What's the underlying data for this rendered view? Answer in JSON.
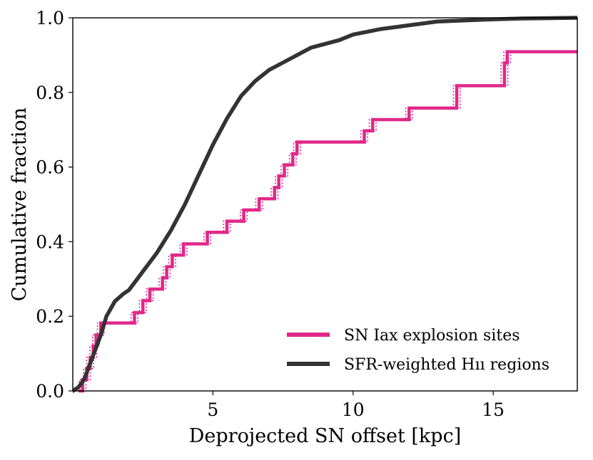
{
  "chart_data": {
    "type": "line",
    "title": "",
    "xlabel": "Deprojected SN offset [kpc]",
    "ylabel": "Cumulative fraction",
    "xlim": [
      0,
      18
    ],
    "ylim": [
      0.0,
      1.0
    ],
    "x_ticks": [
      5,
      10,
      15
    ],
    "x_tick_labels": [
      "5",
      "10",
      "15"
    ],
    "y_ticks": [
      0.0,
      0.2,
      0.4,
      0.6,
      0.8,
      1.0
    ],
    "y_tick_labels": [
      "0.0",
      "0.2",
      "0.4",
      "0.6",
      "0.8",
      "1.0"
    ],
    "grid": false,
    "legend_position": "lower-right",
    "series": [
      {
        "name": "SN Iax explosion sites",
        "style": "step",
        "color": "#e0288a",
        "x": [
          0.2,
          0.35,
          0.5,
          0.62,
          0.73,
          0.83,
          1.0,
          2.2,
          2.5,
          2.75,
          3.2,
          3.35,
          3.55,
          3.95,
          4.8,
          5.5,
          6.1,
          6.65,
          7.2,
          7.35,
          7.55,
          7.85,
          8.0,
          10.4,
          10.7,
          12.0,
          13.7,
          15.4,
          15.5
        ],
        "y": [
          0.0,
          0.03,
          0.06,
          0.09,
          0.12,
          0.15,
          0.182,
          0.21,
          0.242,
          0.273,
          0.303,
          0.333,
          0.364,
          0.394,
          0.425,
          0.455,
          0.485,
          0.515,
          0.545,
          0.576,
          0.606,
          0.636,
          0.667,
          0.697,
          0.727,
          0.758,
          0.818,
          0.879,
          0.909
        ],
        "dotted_offset_curves": true
      },
      {
        "name": "SFR-weighted Hıı regions",
        "style": "line",
        "color": "#333333",
        "x": [
          0.0,
          0.2,
          0.4,
          0.6,
          0.8,
          1.0,
          1.2,
          1.5,
          1.8,
          2.0,
          2.3,
          2.6,
          3.0,
          3.5,
          4.0,
          4.5,
          5.0,
          5.5,
          6.0,
          6.5,
          7.0,
          7.5,
          8.0,
          8.5,
          9.0,
          9.5,
          10.0,
          11.0,
          12.0,
          13.0,
          14.0,
          15.0,
          16.0,
          17.0,
          18.0
        ],
        "y": [
          0.0,
          0.01,
          0.03,
          0.07,
          0.11,
          0.15,
          0.2,
          0.24,
          0.26,
          0.27,
          0.3,
          0.33,
          0.37,
          0.43,
          0.5,
          0.58,
          0.66,
          0.73,
          0.79,
          0.83,
          0.86,
          0.88,
          0.9,
          0.92,
          0.93,
          0.94,
          0.955,
          0.97,
          0.98,
          0.99,
          0.993,
          0.996,
          0.998,
          0.999,
          1.0
        ]
      }
    ],
    "legend": [
      {
        "label": "SN Iax explosion sites",
        "color": "#e0288a"
      },
      {
        "label": "SFR-weighted Hıı regions",
        "color": "#333333"
      }
    ]
  }
}
